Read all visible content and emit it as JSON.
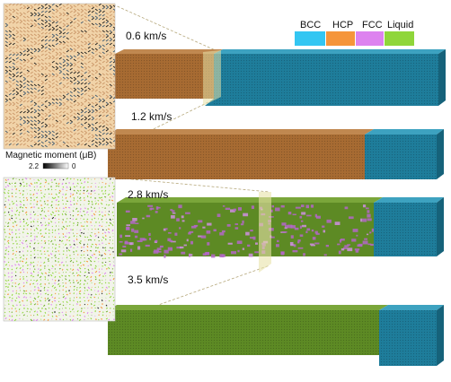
{
  "legend": {
    "items": [
      {
        "label": "BCC",
        "color": "#33c6f2"
      },
      {
        "label": "HCP",
        "color": "#f5953a"
      },
      {
        "label": "FCC",
        "color": "#dd82ef"
      },
      {
        "label": "Liquid",
        "color": "#8fd63a"
      }
    ]
  },
  "colorbar": {
    "title": "Magnetic moment (μB)",
    "max_label": "2.2",
    "min_label": "0"
  },
  "samples": [
    {
      "velocity": "0.6 km/s",
      "phases": [
        "HCP",
        "BCC"
      ],
      "front_fraction": 0.29
    },
    {
      "velocity": "1.2 km/s",
      "phases": [
        "HCP",
        "BCC"
      ],
      "front_fraction": 0.8
    },
    {
      "velocity": "2.8 km/s",
      "phases": [
        "FCC+Liquid",
        "BCC"
      ],
      "front_fraction": 0.78
    },
    {
      "velocity": "3.5 km/s",
      "phases": [
        "Liquid",
        "BCC"
      ],
      "front_fraction": 0.84
    }
  ],
  "colors": {
    "hcp_top": "#b87a3c",
    "hcp_front": "#9e6531",
    "bcc_top": "#2a8fae",
    "bcc_front": "#1c7896",
    "liq_top": "#6e9e30",
    "liq_front": "#5a8a24",
    "fcc_spot": "#b466c8",
    "plane": "#e8e2a8",
    "dash": "#b5a77a"
  }
}
